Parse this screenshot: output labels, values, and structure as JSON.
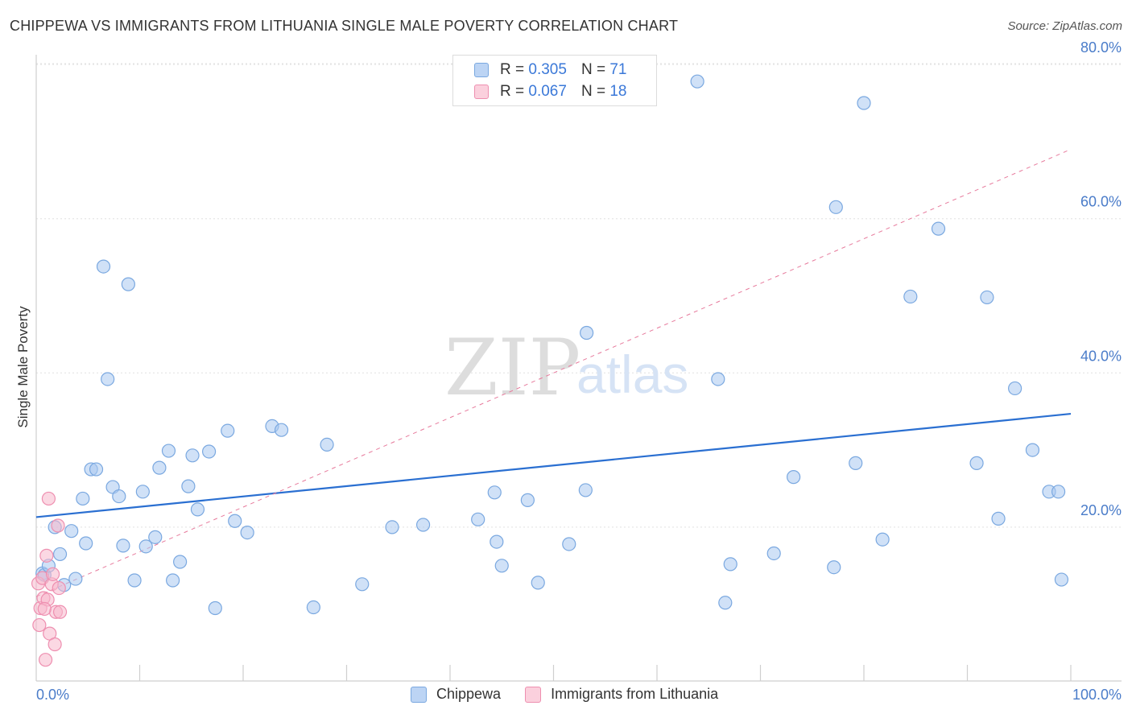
{
  "header": {
    "title": "CHIPPEWA VS IMMIGRANTS FROM LITHUANIA SINGLE MALE POVERTY CORRELATION CHART",
    "source": "Source: ZipAtlas.com"
  },
  "watermark": {
    "zip": "ZIP",
    "atlas": "atlas"
  },
  "legend_top": {
    "rows": [
      {
        "r_label": "R = ",
        "r_value": "0.305",
        "n_label": "N = ",
        "n_value": "71",
        "color": "#a9c8f0"
      },
      {
        "r_label": "R = ",
        "r_value": "0.067",
        "n_label": "N = ",
        "n_value": "18",
        "color": "#f7b8cc"
      }
    ]
  },
  "legend_bottom": {
    "items": [
      {
        "label": "Chippewa",
        "color": "#a9c8f0"
      },
      {
        "label": "Immigrants from Lithuania",
        "color": "#f7b8cc"
      }
    ]
  },
  "chart_data": {
    "type": "scatter",
    "title": "CHIPPEWA VS IMMIGRANTS FROM LITHUANIA SINGLE MALE POVERTY CORRELATION CHART",
    "xlabel": "",
    "ylabel": "Single Male Poverty",
    "xlim": [
      0,
      100
    ],
    "ylim": [
      0,
      80
    ],
    "x_tick_labels": [
      "0.0%",
      "100.0%"
    ],
    "y_ticks": [
      20,
      40,
      60,
      80
    ],
    "y_tick_labels": [
      "20.0%",
      "40.0%",
      "60.0%",
      "80.0%"
    ],
    "grid": true,
    "legend_position": "top-center",
    "series": [
      {
        "name": "Chippewa",
        "color": "#a9c8f0",
        "stroke": "#7aa8e0",
        "points": [
          [
            0.6,
            14.0
          ],
          [
            0.8,
            13.8
          ],
          [
            1.2,
            15.0
          ],
          [
            1.8,
            20.0
          ],
          [
            2.3,
            16.5
          ],
          [
            2.7,
            12.5
          ],
          [
            3.4,
            19.5
          ],
          [
            3.8,
            13.3
          ],
          [
            4.5,
            23.7
          ],
          [
            4.8,
            17.9
          ],
          [
            5.3,
            27.5
          ],
          [
            5.8,
            27.5
          ],
          [
            6.5,
            53.8
          ],
          [
            6.9,
            39.2
          ],
          [
            7.4,
            25.2
          ],
          [
            8.0,
            24.0
          ],
          [
            8.4,
            17.6
          ],
          [
            8.9,
            51.5
          ],
          [
            9.5,
            13.1
          ],
          [
            10.3,
            24.6
          ],
          [
            10.6,
            17.5
          ],
          [
            11.5,
            18.7
          ],
          [
            11.9,
            27.7
          ],
          [
            12.8,
            29.9
          ],
          [
            13.2,
            13.1
          ],
          [
            13.9,
            15.5
          ],
          [
            14.7,
            25.3
          ],
          [
            15.1,
            29.3
          ],
          [
            15.6,
            22.3
          ],
          [
            16.7,
            29.8
          ],
          [
            17.3,
            9.5
          ],
          [
            18.5,
            32.5
          ],
          [
            19.2,
            20.8
          ],
          [
            20.4,
            19.3
          ],
          [
            22.8,
            33.1
          ],
          [
            23.7,
            32.6
          ],
          [
            26.8,
            9.6
          ],
          [
            28.1,
            30.7
          ],
          [
            31.5,
            12.6
          ],
          [
            34.4,
            20.0
          ],
          [
            37.4,
            20.3
          ],
          [
            42.7,
            21.0
          ],
          [
            44.3,
            24.5
          ],
          [
            44.5,
            18.1
          ],
          [
            45.0,
            15.0
          ],
          [
            47.5,
            23.5
          ],
          [
            48.5,
            12.8
          ],
          [
            51.5,
            17.8
          ],
          [
            53.1,
            24.8
          ],
          [
            53.2,
            45.2
          ],
          [
            63.9,
            77.8
          ],
          [
            65.9,
            39.2
          ],
          [
            66.6,
            10.2
          ],
          [
            67.1,
            15.2
          ],
          [
            71.3,
            16.6
          ],
          [
            73.2,
            26.5
          ],
          [
            77.1,
            14.8
          ],
          [
            77.3,
            61.5
          ],
          [
            79.2,
            28.3
          ],
          [
            80.0,
            75.0
          ],
          [
            81.8,
            18.4
          ],
          [
            84.5,
            49.9
          ],
          [
            87.2,
            58.7
          ],
          [
            90.9,
            28.3
          ],
          [
            91.9,
            49.8
          ],
          [
            93.0,
            21.1
          ],
          [
            94.6,
            38.0
          ],
          [
            96.3,
            30.0
          ],
          [
            97.9,
            24.6
          ],
          [
            98.8,
            24.6
          ],
          [
            99.1,
            13.2
          ]
        ]
      },
      {
        "name": "Immigrants from Lithuania",
        "color": "#f7b8cc",
        "stroke": "#ee8fb0",
        "points": [
          [
            0.2,
            12.7
          ],
          [
            0.3,
            7.3
          ],
          [
            0.4,
            9.5
          ],
          [
            0.6,
            13.4
          ],
          [
            0.7,
            10.8
          ],
          [
            0.9,
            2.8
          ],
          [
            1.0,
            16.3
          ],
          [
            1.1,
            10.6
          ],
          [
            1.2,
            23.7
          ],
          [
            1.3,
            6.2
          ],
          [
            1.5,
            12.6
          ],
          [
            1.6,
            13.9
          ],
          [
            1.8,
            4.8
          ],
          [
            1.9,
            9.0
          ],
          [
            2.1,
            20.2
          ],
          [
            2.2,
            12.1
          ],
          [
            2.3,
            9.0
          ],
          [
            0.8,
            9.4
          ]
        ]
      }
    ],
    "trend_lines": [
      {
        "series": "Chippewa",
        "x": [
          0,
          100
        ],
        "y": [
          21.3,
          34.7
        ],
        "style": "solid",
        "color": "#2a6fd1"
      },
      {
        "series": "Immigrants from Lithuania",
        "x": [
          0,
          100
        ],
        "y": [
          11.0,
          69.0
        ],
        "style": "dashed",
        "color": "#e77a9c"
      }
    ]
  }
}
